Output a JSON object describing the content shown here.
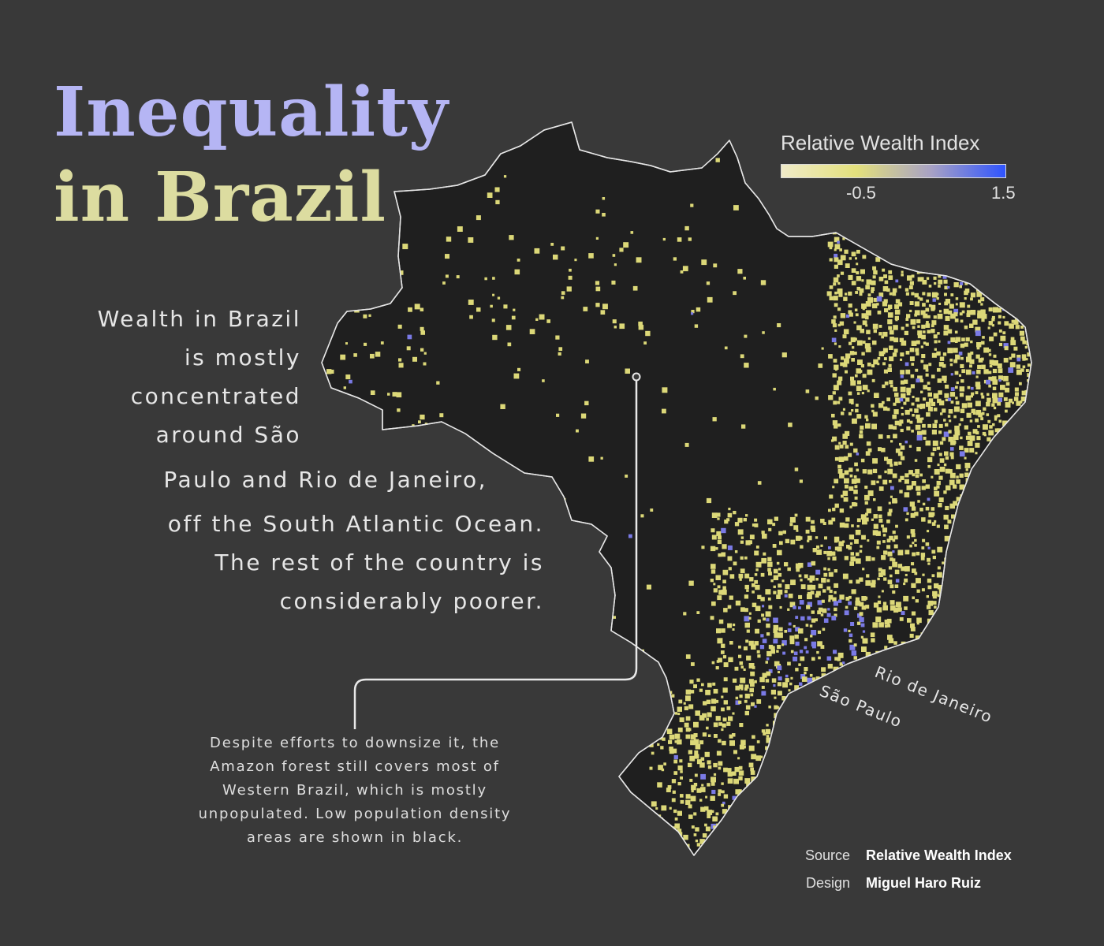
{
  "title": {
    "line1": "Inequality",
    "line2": "in Brazil",
    "line1_color": "#b5b5f4",
    "line2_color": "#dcdca0"
  },
  "legend": {
    "title": "Relative Wealth Index",
    "min_label": "-0.5",
    "max_label": "1.5",
    "gradient": [
      "#f0ebc8",
      "#e3e07c",
      "#a8a2c4",
      "#2f54ff"
    ]
  },
  "lede": {
    "lines": [
      "Wealth in Brazil",
      "is mostly",
      "concentrated",
      "around São",
      "Paulo and Rio de Janeiro,",
      "off the South Atlantic Ocean.",
      "The rest of the country is",
      "considerably poorer."
    ]
  },
  "note": {
    "lines": [
      "Despite efforts to downsize it, the",
      "Amazon forest still covers most of",
      "Western Brazil, which is mostly",
      "unpopulated. Low population density",
      "areas are shown in black."
    ]
  },
  "cities": {
    "rio": "Rio de Janeiro",
    "sao_paulo": "São Paulo"
  },
  "credits": {
    "source_label": "Source",
    "source_value": "Relative Wealth Index",
    "design_label": "Design",
    "design_value": "Miguel Haro Ruiz"
  },
  "map": {
    "land_color": "#1f1f1f",
    "border_color": "#e6e6e6",
    "low_color": "#dcd878",
    "high_color": "#7a7ae6"
  }
}
